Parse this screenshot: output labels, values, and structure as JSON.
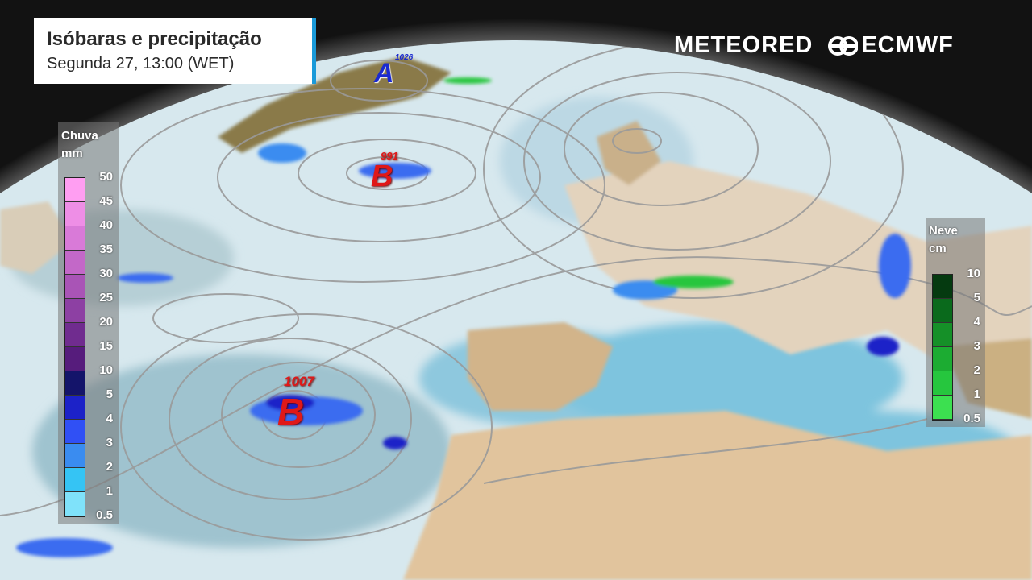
{
  "header": {
    "title": "Isóbaras e precipitação",
    "subtitle": "Segunda 27, 13:00 (WET)"
  },
  "logos": {
    "meteored": "METEORED",
    "ecmwf": "ECMWF"
  },
  "rain_legend": {
    "title": "Chuva",
    "unit": "mm",
    "ticks": [
      "50",
      "45",
      "40",
      "35",
      "30",
      "25",
      "20",
      "15",
      "10",
      "5",
      "4",
      "3",
      "2",
      "1",
      "0.5"
    ],
    "colors": [
      "#ff9ef2",
      "#ee8ee6",
      "#d97ad8",
      "#c368c8",
      "#a954b6",
      "#8d40a3",
      "#702c8f",
      "#561c7c",
      "#14146a",
      "#1c22c8",
      "#3050f5",
      "#3a8cf0",
      "#35c4f4",
      "#7fe2fa"
    ]
  },
  "snow_legend": {
    "title": "Neve",
    "unit": "cm",
    "ticks": [
      "10",
      "5",
      "4",
      "3",
      "2",
      "1",
      "0.5"
    ],
    "colors": [
      "#053a10",
      "#0a6a1c",
      "#159028",
      "#1cac32",
      "#26c63e",
      "#3ce050"
    ]
  },
  "pressure_systems": [
    {
      "type": "A",
      "value": "1026",
      "color": "#1a2ad0"
    },
    {
      "type": "B",
      "value": "991",
      "color": "#e01818"
    },
    {
      "type": "B",
      "value": "1007",
      "color": "#e01818"
    }
  ]
}
